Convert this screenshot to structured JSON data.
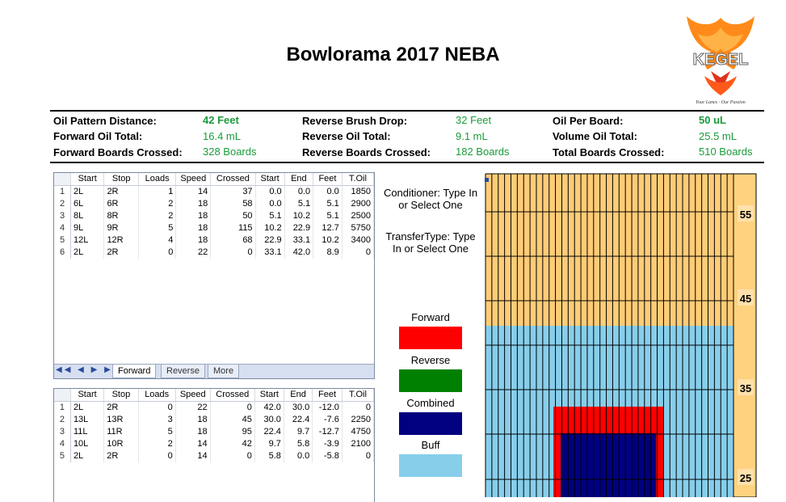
{
  "title": "Bowlorama 2017 NEBA",
  "logo": {
    "brand": "KEGEL",
    "tagline": "Your Lanes · Our Passion",
    "icon": "phoenix-logo-icon"
  },
  "stats": [
    {
      "label": "Oil Pattern Distance:",
      "value": "42 Feet",
      "bold": true
    },
    {
      "label": "Forward Oil Total:",
      "value": "16.4 mL",
      "bold": false
    },
    {
      "label": "Forward Boards Crossed:",
      "value": "328 Boards",
      "bold": false
    },
    {
      "label": "Reverse Brush Drop:",
      "value": "32 Feet",
      "bold": false
    },
    {
      "label": "Reverse Oil Total:",
      "value": "9.1 mL",
      "bold": false
    },
    {
      "label": "Reverse Boards Crossed:",
      "value": "182 Boards",
      "bold": false
    },
    {
      "label": "Oil Per Board:",
      "value": "50 uL",
      "bold": true
    },
    {
      "label": "Volume Oil Total:",
      "value": "25.5 mL",
      "bold": false
    },
    {
      "label": "Total Boards Crossed:",
      "value": "510 Boards",
      "bold": false
    }
  ],
  "columns": [
    "Start",
    "Stop",
    "Loads",
    "Speed",
    "Crossed",
    "Start",
    "End",
    "Feet",
    "T.Oil"
  ],
  "forward_rows": [
    [
      "1",
      "2L",
      "2R",
      "1",
      "14",
      "37",
      "0.0",
      "0.0",
      "0.0",
      "1850"
    ],
    [
      "2",
      "6L",
      "6R",
      "2",
      "18",
      "58",
      "0.0",
      "5.1",
      "5.1",
      "2900"
    ],
    [
      "3",
      "8L",
      "8R",
      "2",
      "18",
      "50",
      "5.1",
      "10.2",
      "5.1",
      "2500"
    ],
    [
      "4",
      "9L",
      "9R",
      "5",
      "18",
      "115",
      "10.2",
      "22.9",
      "12.7",
      "5750"
    ],
    [
      "5",
      "12L",
      "12R",
      "4",
      "18",
      "68",
      "22.9",
      "33.1",
      "10.2",
      "3400"
    ],
    [
      "6",
      "2L",
      "2R",
      "0",
      "22",
      "0",
      "33.1",
      "42.0",
      "8.9",
      "0"
    ]
  ],
  "reverse_rows": [
    [
      "1",
      "2L",
      "2R",
      "0",
      "22",
      "0",
      "42.0",
      "30.0",
      "-12.0",
      "0"
    ],
    [
      "2",
      "13L",
      "13R",
      "3",
      "18",
      "45",
      "30.0",
      "22.4",
      "-7.6",
      "2250"
    ],
    [
      "3",
      "11L",
      "11R",
      "5",
      "18",
      "95",
      "22.4",
      "9.7",
      "-12.7",
      "4750"
    ],
    [
      "4",
      "10L",
      "10R",
      "2",
      "14",
      "42",
      "9.7",
      "5.8",
      "-3.9",
      "2100"
    ],
    [
      "5",
      "2L",
      "2R",
      "0",
      "14",
      "0",
      "5.8",
      "0.0",
      "-5.8",
      "0"
    ]
  ],
  "sheet_tabs": [
    "Forward",
    "Reverse",
    "More"
  ],
  "tab_nav": "◀◀ ◀ ▶ ▶▶",
  "conditioner_text": "Conditioner: Type In or Select One",
  "transfer_text": "TransferType: Type In or Select One",
  "legend": [
    {
      "label": "Forward",
      "color": "#ff0000"
    },
    {
      "label": "Reverse",
      "color": "#008000"
    },
    {
      "label": "Combined",
      "color": "#000080"
    },
    {
      "label": "Buff",
      "color": "#87ceeb"
    }
  ],
  "lane_markers": [
    "55",
    "45",
    "35",
    "25"
  ],
  "lane_colors": {
    "lane": "#ffcc77",
    "marker_strip": "#ffd27f",
    "buff": "#87ceeb",
    "forward": "#ff0000",
    "combined": "#000080"
  }
}
